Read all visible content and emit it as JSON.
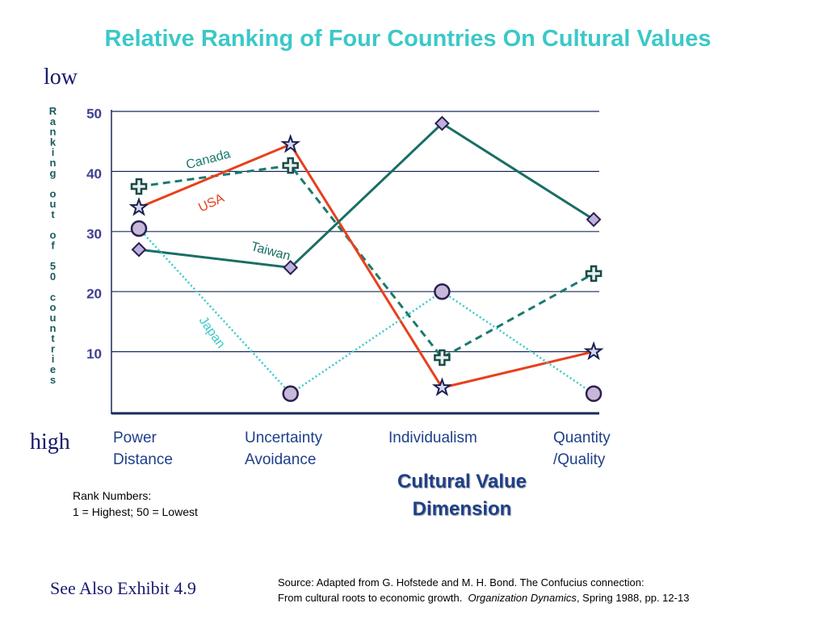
{
  "chart_data": {
    "type": "line",
    "title": "Relative Ranking of Four Countries On Cultural Values",
    "top_label": "low",
    "bottom_label": "high",
    "y_axis_label": "Ranking out of 50 countries",
    "x_axis_label": "Cultural Value Dimension",
    "categories": [
      "Power Distance",
      "Uncertainty Avoidance",
      "Individualism",
      "Quantity /Quality"
    ],
    "series": [
      {
        "name": "Canada",
        "color": "#1a7a6e",
        "dash": "dashed",
        "marker": "cross",
        "values": [
          37.5,
          41,
          9,
          23
        ]
      },
      {
        "name": "USA",
        "color": "#e8401c",
        "dash": "solid",
        "marker": "star",
        "values": [
          34,
          44.5,
          4,
          10
        ]
      },
      {
        "name": "Taiwan",
        "color": "#1a6e64",
        "dash": "solid",
        "marker": "diamond",
        "values": [
          27,
          24,
          48,
          32
        ]
      },
      {
        "name": "Japan",
        "color": "#3cc8c8",
        "dash": "dotted",
        "marker": "circle",
        "values": [
          30.5,
          3,
          20,
          3
        ]
      }
    ],
    "ylim": [
      0,
      50
    ],
    "yticks": [
      10,
      20,
      30,
      40,
      50
    ],
    "grid": true,
    "note": [
      "Rank Numbers:",
      "1 = Highest; 50 = Lowest"
    ],
    "footer": "See Also Exhibit 4.9",
    "source": {
      "line1": "Source: Adapted from G. Hofstede and M. H. Bond.  The Confucius connection:",
      "line2": "From cultural roots to economic growth.",
      "journal": "Organization Dynamics",
      "details": ", Spring 1988, pp. 12-13"
    }
  }
}
